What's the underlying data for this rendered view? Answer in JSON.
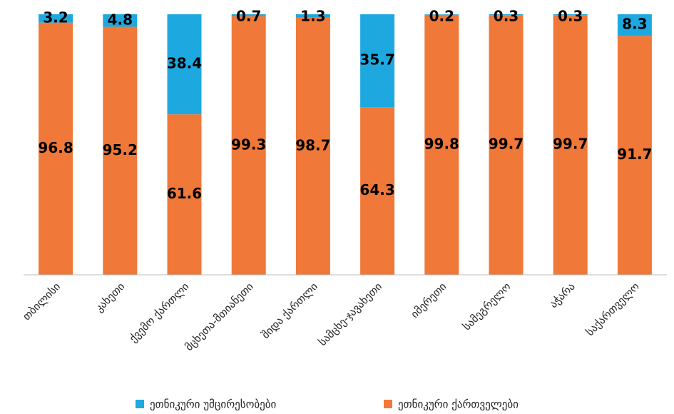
{
  "chart_data": {
    "type": "stacked_bar",
    "categories": [
      "თბილისი",
      "კახეთი",
      "ქვემო ქართლი",
      "მცხეთა-მთიანეთი",
      "შიდა ქართლი",
      "სამცხე-ჯავახეთი",
      "იმერეთი",
      "სამეგრელო",
      "აჭარა",
      "საქართველო"
    ],
    "series": [
      {
        "name": "ეთნიკური ქართველები",
        "color": "#f07838",
        "values": [
          96.8,
          95.2,
          61.6,
          99.3,
          98.7,
          64.3,
          99.8,
          99.7,
          99.7,
          91.7
        ]
      },
      {
        "name": "ეთნიკური უმცირესობები",
        "color": "#1ea8e0",
        "values": [
          3.2,
          4.8,
          38.4,
          0.7,
          1.3,
          35.7,
          0.2,
          0.3,
          0.3,
          8.3
        ]
      }
    ]
  }
}
